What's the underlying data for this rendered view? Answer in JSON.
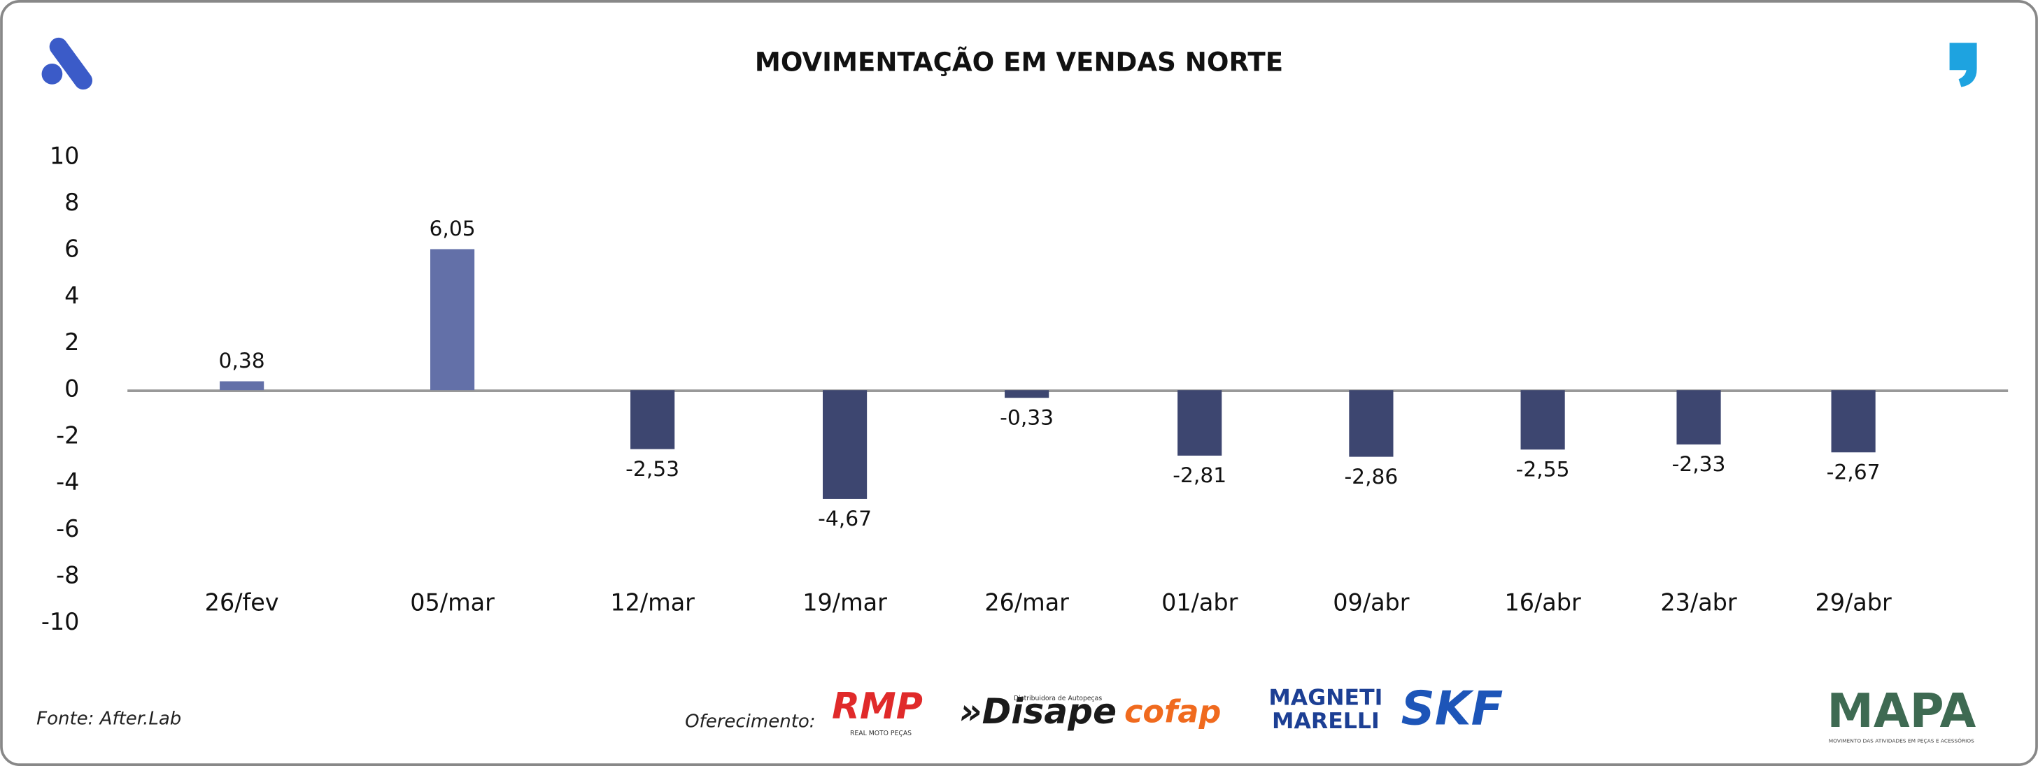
{
  "chart_data": {
    "type": "bar",
    "title": "MOVIMENTAÇÃO EM VENDAS NORTE",
    "categories": [
      "26/fev",
      "05/mar",
      "12/mar",
      "19/mar",
      "26/mar",
      "01/abr",
      "09/abr",
      "16/abr",
      "23/abr",
      "29/abr"
    ],
    "values": [
      0.38,
      6.05,
      -2.53,
      -4.67,
      -0.33,
      -2.81,
      -2.86,
      -2.55,
      -2.33,
      -2.67
    ],
    "value_labels": [
      "0,38",
      "6,05",
      "-2,53",
      "-4,67",
      "-0,33",
      "-2,81",
      "-2,86",
      "-2,55",
      "-2,33",
      "-2,67"
    ],
    "colors": {
      "positive": "#6370a8",
      "negative": "#3d4670"
    },
    "ylim": [
      -10,
      10
    ],
    "yticks": [
      -10,
      -8,
      -6,
      -4,
      -2,
      0,
      2,
      4,
      6,
      8,
      10
    ],
    "grid": false,
    "source": "Fonte: After.Lab",
    "sponsor_label": "Oferecimento:",
    "sponsors": [
      "RMP",
      "REAL MOTO PEÇAS",
      "»Disape",
      "Distribuidora de Autopeças",
      "cofap",
      "MAGNETI",
      "MARELLI",
      "SKF",
      "MAPA",
      "MOVIMENTO DAS ATIVIDADES EM PEÇAS E ACESSÓRIOS"
    ]
  }
}
